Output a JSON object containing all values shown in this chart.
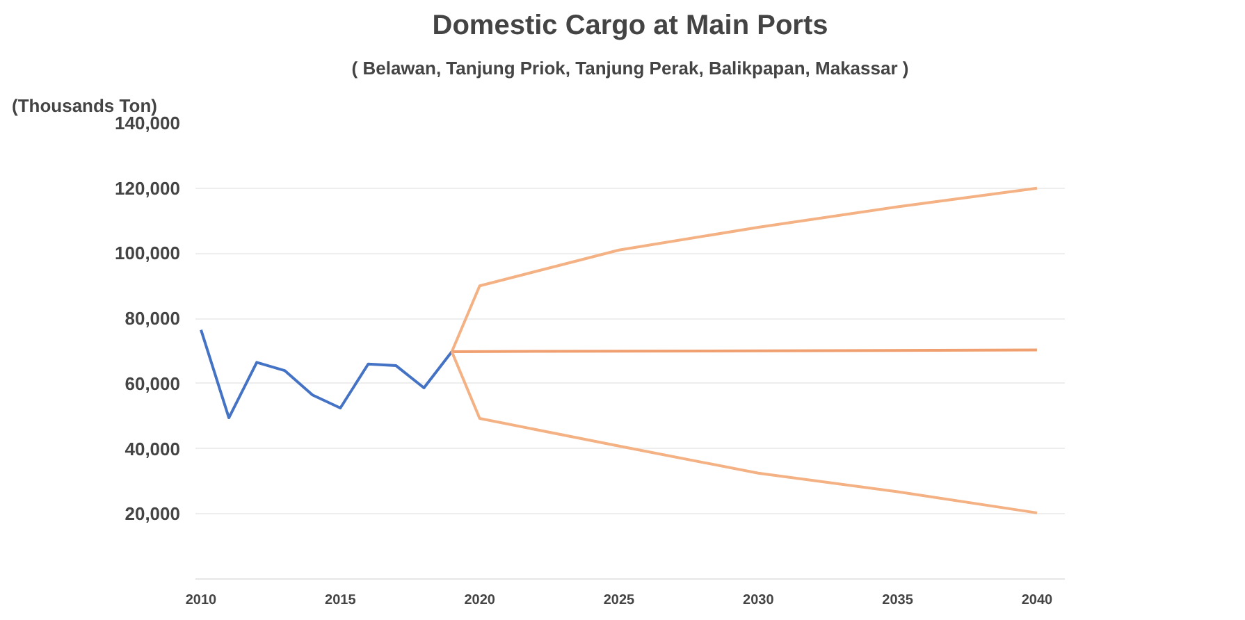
{
  "chart_data": {
    "type": "line",
    "title": "Domestic Cargo at Main Ports",
    "subtitle": "( Belawan, Tanjung Priok, Tanjung Perak, Balikpapan, Makassar )",
    "ylabel": "(Thousands Ton)",
    "series": [
      {
        "color": "#4472c4",
        "x": [
          2010,
          2011,
          2012,
          2013,
          2014,
          2015,
          2016,
          2017,
          2018,
          2019
        ],
        "values": [
          76500,
          49500,
          66500,
          64000,
          56500,
          52500,
          66000,
          65500,
          58700,
          69800
        ]
      },
      {
        "color": "#f4b183",
        "x": [
          2019,
          2020,
          2025,
          2030,
          2035,
          2040
        ],
        "values": [
          69800,
          90000,
          101000,
          108000,
          114300,
          120000
        ]
      },
      {
        "color": "#f0a070",
        "x": [
          2019,
          2040
        ],
        "values": [
          69800,
          70300
        ]
      },
      {
        "color": "#f4b183",
        "x": [
          2019,
          2020,
          2025,
          2030,
          2035,
          2040
        ],
        "values": [
          69800,
          49300,
          40800,
          32500,
          26800,
          20300
        ]
      }
    ],
    "xlim": [
      2009.8,
      2041
    ],
    "xticks": [
      2010,
      2015,
      2020,
      2025,
      2030,
      2035,
      2040
    ],
    "ylim": [
      0,
      140000
    ],
    "yticks": [
      {
        "value": 20000,
        "label": "20,000"
      },
      {
        "value": 40000,
        "label": "40,000"
      },
      {
        "value": 60000,
        "label": "60,000"
      },
      {
        "value": 80000,
        "label": "80,000"
      },
      {
        "value": 100000,
        "label": "100,000"
      },
      {
        "value": 120000,
        "label": "120,000"
      },
      {
        "value": 140000,
        "label": "140,000"
      }
    ],
    "grid": "y",
    "marker": "none",
    "line_style": "solid"
  }
}
